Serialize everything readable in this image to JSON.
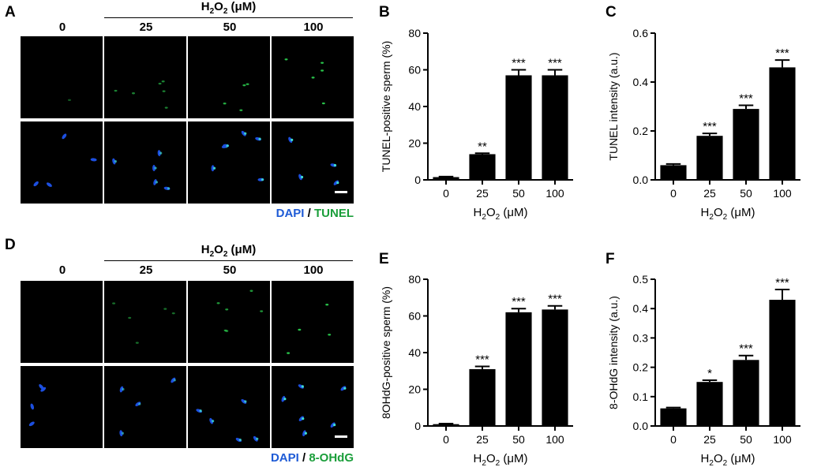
{
  "panels": {
    "A": "A",
    "B": "B",
    "C": "C",
    "D": "D",
    "E": "E",
    "F": "F"
  },
  "micrograph_top": {
    "header_main": "H",
    "header_sub": "2",
    "header_mid": "O",
    "header_sub2": "2",
    "header_unit": " (μM)",
    "columns": [
      "0",
      "25",
      "50",
      "100"
    ],
    "legend_a": "DAPI",
    "legend_sep": " / ",
    "legend_b": "TUNEL",
    "legend_a_color": "#1e5bd6",
    "legend_b_color": "#1a9e3a",
    "row1_channel": "TUNEL (green)",
    "row2_channel": "DAPI (blue)"
  },
  "micrograph_bottom": {
    "header_main": "H",
    "header_sub": "2",
    "header_mid": "O",
    "header_sub2": "2",
    "header_unit": " (μM)",
    "columns": [
      "0",
      "25",
      "50",
      "100"
    ],
    "legend_a": "DAPI",
    "legend_sep": " / ",
    "legend_b": "8-OHdG",
    "legend_a_color": "#1e5bd6",
    "legend_b_color": "#1a9e3a"
  },
  "chart_data": [
    {
      "id": "B",
      "type": "bar",
      "categories": [
        "0",
        "25",
        "50",
        "100"
      ],
      "values": [
        1.5,
        14,
        57,
        57
      ],
      "errors": [
        0.3,
        0.5,
        3,
        3
      ],
      "significance": [
        "",
        "**",
        "***",
        "***"
      ],
      "ylabel": "TUNEL-positive sperm (%)",
      "xlabel": "H2O2 (μM)",
      "ylim": [
        0,
        80
      ],
      "yticks": [
        "0",
        "20",
        "40",
        "60",
        "80"
      ],
      "bar_color": "#000000"
    },
    {
      "id": "C",
      "type": "bar",
      "categories": [
        "0",
        "25",
        "50",
        "100"
      ],
      "values": [
        0.06,
        0.18,
        0.29,
        0.46
      ],
      "errors": [
        0.005,
        0.01,
        0.015,
        0.03
      ],
      "significance": [
        "",
        "***",
        "***",
        "***"
      ],
      "ylabel": "TUNEL intensity (a.u.)",
      "xlabel": "H2O2 (μM)",
      "ylim": [
        0,
        0.6
      ],
      "yticks": [
        "0.0",
        "0.2",
        "0.4",
        "0.6"
      ],
      "bar_color": "#000000"
    },
    {
      "id": "E",
      "type": "bar",
      "categories": [
        "0",
        "25",
        "50",
        "100"
      ],
      "values": [
        1,
        31,
        62,
        63.5
      ],
      "errors": [
        0.3,
        1.5,
        2,
        2
      ],
      "significance": [
        "",
        "***",
        "***",
        "***"
      ],
      "ylabel": "8OHdG-positive sperm (%)",
      "xlabel": "H2O2 (μM)",
      "ylim": [
        0,
        80
      ],
      "yticks": [
        "0",
        "20",
        "40",
        "60",
        "80"
      ],
      "bar_color": "#000000"
    },
    {
      "id": "F",
      "type": "bar",
      "categories": [
        "0",
        "25",
        "50",
        "100"
      ],
      "values": [
        0.06,
        0.15,
        0.225,
        0.43
      ],
      "errors": [
        0.003,
        0.006,
        0.015,
        0.035
      ],
      "significance": [
        "",
        "*",
        "***",
        "***"
      ],
      "ylabel": "8-OHdG intensity (a.u.)",
      "xlabel": "H2O2 (μM)",
      "ylim": [
        0,
        0.5
      ],
      "yticks": [
        "0.0",
        "0.1",
        "0.2",
        "0.3",
        "0.4",
        "0.5"
      ],
      "bar_color": "#000000"
    }
  ]
}
